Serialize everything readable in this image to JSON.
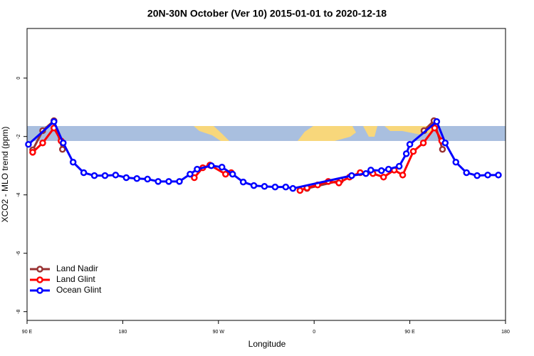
{
  "chart_data": {
    "type": "line",
    "title": "20N-30N October (Ver 10)   2015-01-01 to 2020-12-18",
    "xlabel": "Longitude",
    "ylabel": "XCO2 - MLO trend (ppm)",
    "xlim": [
      90,
      540
    ],
    "ylim": [
      -8.3,
      1.7
    ],
    "xticks": [
      {
        "value": 90,
        "label": "90 E"
      },
      {
        "value": 180,
        "label": "180"
      },
      {
        "value": 270,
        "label": "90 W"
      },
      {
        "value": 360,
        "label": "0"
      },
      {
        "value": 450,
        "label": "90 E"
      },
      {
        "value": 540,
        "label": "180"
      }
    ],
    "yticks": [
      0,
      -2,
      -4,
      -6,
      -8
    ],
    "legend": "bottom-left",
    "series": [
      {
        "name": "Land Nadir",
        "color": "#993333",
        "x": [
          95.3,
          104.7,
          115.3,
          123.3,
          null,
          353.3,
          384.7,
          null,
          463.3,
          472.7,
          480.7
        ],
        "values": [
          -2.46,
          -1.8,
          -1.46,
          -2.44,
          null,
          -3.78,
          -3.51,
          null,
          -1.8,
          -1.46,
          -2.44
        ]
      },
      {
        "name": "Land Glint",
        "color": "#ff0000",
        "x": [
          95.3,
          104.7,
          115.3,
          122,
          null,
          247.3,
          255.3,
          262,
          276.7,
          282,
          null,
          346.7,
          353.3,
          363.3,
          373.3,
          383.3,
          393.3,
          403.3,
          415.3,
          425.3,
          435.3,
          443.3,
          453.3,
          462.7,
          473.3,
          480
        ],
        "values": [
          -2.54,
          -2.22,
          -1.71,
          -2.15,
          null,
          -3.41,
          -3.07,
          -2.98,
          -3.29,
          -3.24,
          null,
          -3.85,
          -3.76,
          -3.66,
          -3.54,
          -3.59,
          -3.39,
          -3.24,
          -3.27,
          -3.39,
          -3.15,
          -3.32,
          -2.51,
          -2.22,
          -1.71,
          -2.15
        ]
      },
      {
        "name": "Ocean Glint",
        "color": "#0000ff",
        "x": [
          91.3,
          115.3,
          124,
          133.3,
          143.3,
          153.3,
          163.3,
          173.3,
          183.3,
          193.3,
          203.3,
          213.3,
          223.3,
          233.3,
          243.3,
          250,
          263.3,
          273.3,
          283.3,
          293.3,
          303.3,
          313.3,
          323.3,
          333.3,
          340,
          395.3,
          408.7,
          413.3,
          423.3,
          430,
          440,
          446.7,
          450,
          475.3,
          483.3,
          493.3,
          503.3,
          513.3,
          523.3,
          533.3
        ],
        "values": [
          -2.27,
          -1.49,
          -2.22,
          -2.88,
          -3.24,
          -3.34,
          -3.34,
          -3.32,
          -3.41,
          -3.44,
          -3.46,
          -3.54,
          -3.54,
          -3.54,
          -3.29,
          -3.12,
          -3.0,
          -3.05,
          -3.29,
          -3.56,
          -3.68,
          -3.71,
          -3.73,
          -3.73,
          -3.78,
          -3.34,
          -3.27,
          -3.15,
          -3.17,
          -3.12,
          -3.02,
          -2.59,
          -2.27,
          -1.49,
          -2.22,
          -2.88,
          -3.24,
          -3.34,
          -3.32,
          -3.32
        ]
      }
    ]
  }
}
